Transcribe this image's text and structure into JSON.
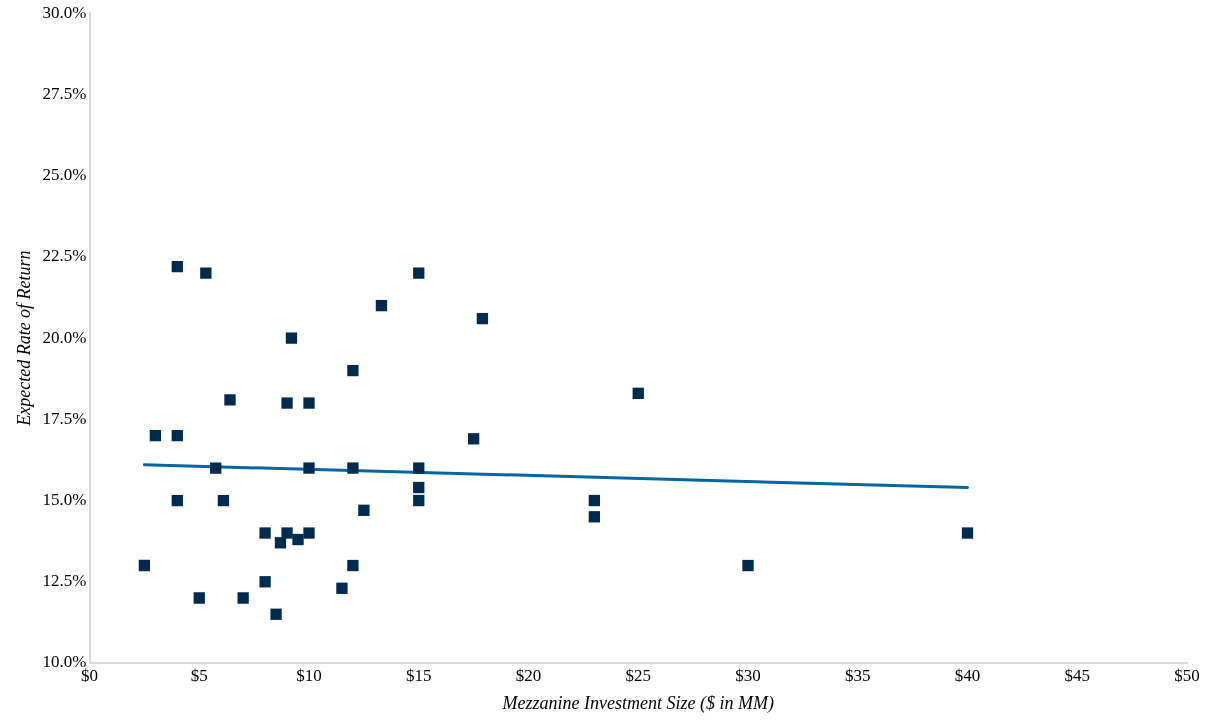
{
  "chart_data": {
    "type": "scatter",
    "xlabel": "Mezzanine Investment Size ($ in MM)",
    "ylabel": "Expected Rate of Return",
    "xlim": [
      0,
      50
    ],
    "xticks": [
      {
        "value": 0,
        "label": "$0"
      },
      {
        "value": 5,
        "label": "$5"
      },
      {
        "value": 10,
        "label": "$10"
      },
      {
        "value": 15,
        "label": "$15"
      },
      {
        "value": 20,
        "label": "$20"
      },
      {
        "value": 25,
        "label": "$25"
      },
      {
        "value": 30,
        "label": "$30"
      },
      {
        "value": 35,
        "label": "$35"
      },
      {
        "value": 40,
        "label": "$40"
      },
      {
        "value": 45,
        "label": "$45"
      },
      {
        "value": 50,
        "label": "$50"
      }
    ],
    "ylim": [
      10,
      30
    ],
    "yticks": [
      {
        "value": 10,
        "label": "10.0%"
      },
      {
        "value": 12.5,
        "label": "12.5%"
      },
      {
        "value": 15,
        "label": "15.0%"
      },
      {
        "value": 17.5,
        "label": "17.5%"
      },
      {
        "value": 20,
        "label": "20.0%"
      },
      {
        "value": 22.5,
        "label": "22.5%"
      },
      {
        "value": 25,
        "label": "25.0%"
      },
      {
        "value": 27.5,
        "label": "27.5%"
      },
      {
        "value": 30,
        "label": "30.0%"
      }
    ],
    "grid": false,
    "legend": false,
    "marker": "square",
    "series": [
      {
        "color": "#002a4e",
        "x": [
          2.5,
          3,
          4,
          4,
          4,
          5.3,
          5,
          5.75,
          6.4,
          6.1,
          7,
          8,
          8,
          8.5,
          8.7,
          9,
          9,
          9.2,
          9.5,
          10,
          10,
          10,
          11.5,
          12,
          12,
          12,
          12.5,
          13.3,
          15,
          15,
          15,
          15,
          17.5,
          17.9,
          23,
          23,
          25,
          30,
          40
        ],
        "values": [
          13,
          17,
          22.2,
          17,
          15,
          22,
          12,
          16,
          18.1,
          15,
          12,
          14,
          12.5,
          11.5,
          13.7,
          18,
          14,
          20,
          13.8,
          18,
          16,
          14,
          12.3,
          19,
          16,
          13,
          14.7,
          21,
          22,
          16,
          15.4,
          15,
          16.9,
          20.6,
          15,
          14.5,
          18.3,
          13,
          14
        ]
      },
      {
        "type": "line",
        "color": "#0066a1",
        "line_style": "solid",
        "marker": "none",
        "x": [
          2.5,
          40
        ],
        "values": [
          16.1,
          15.4
        ]
      }
    ]
  }
}
